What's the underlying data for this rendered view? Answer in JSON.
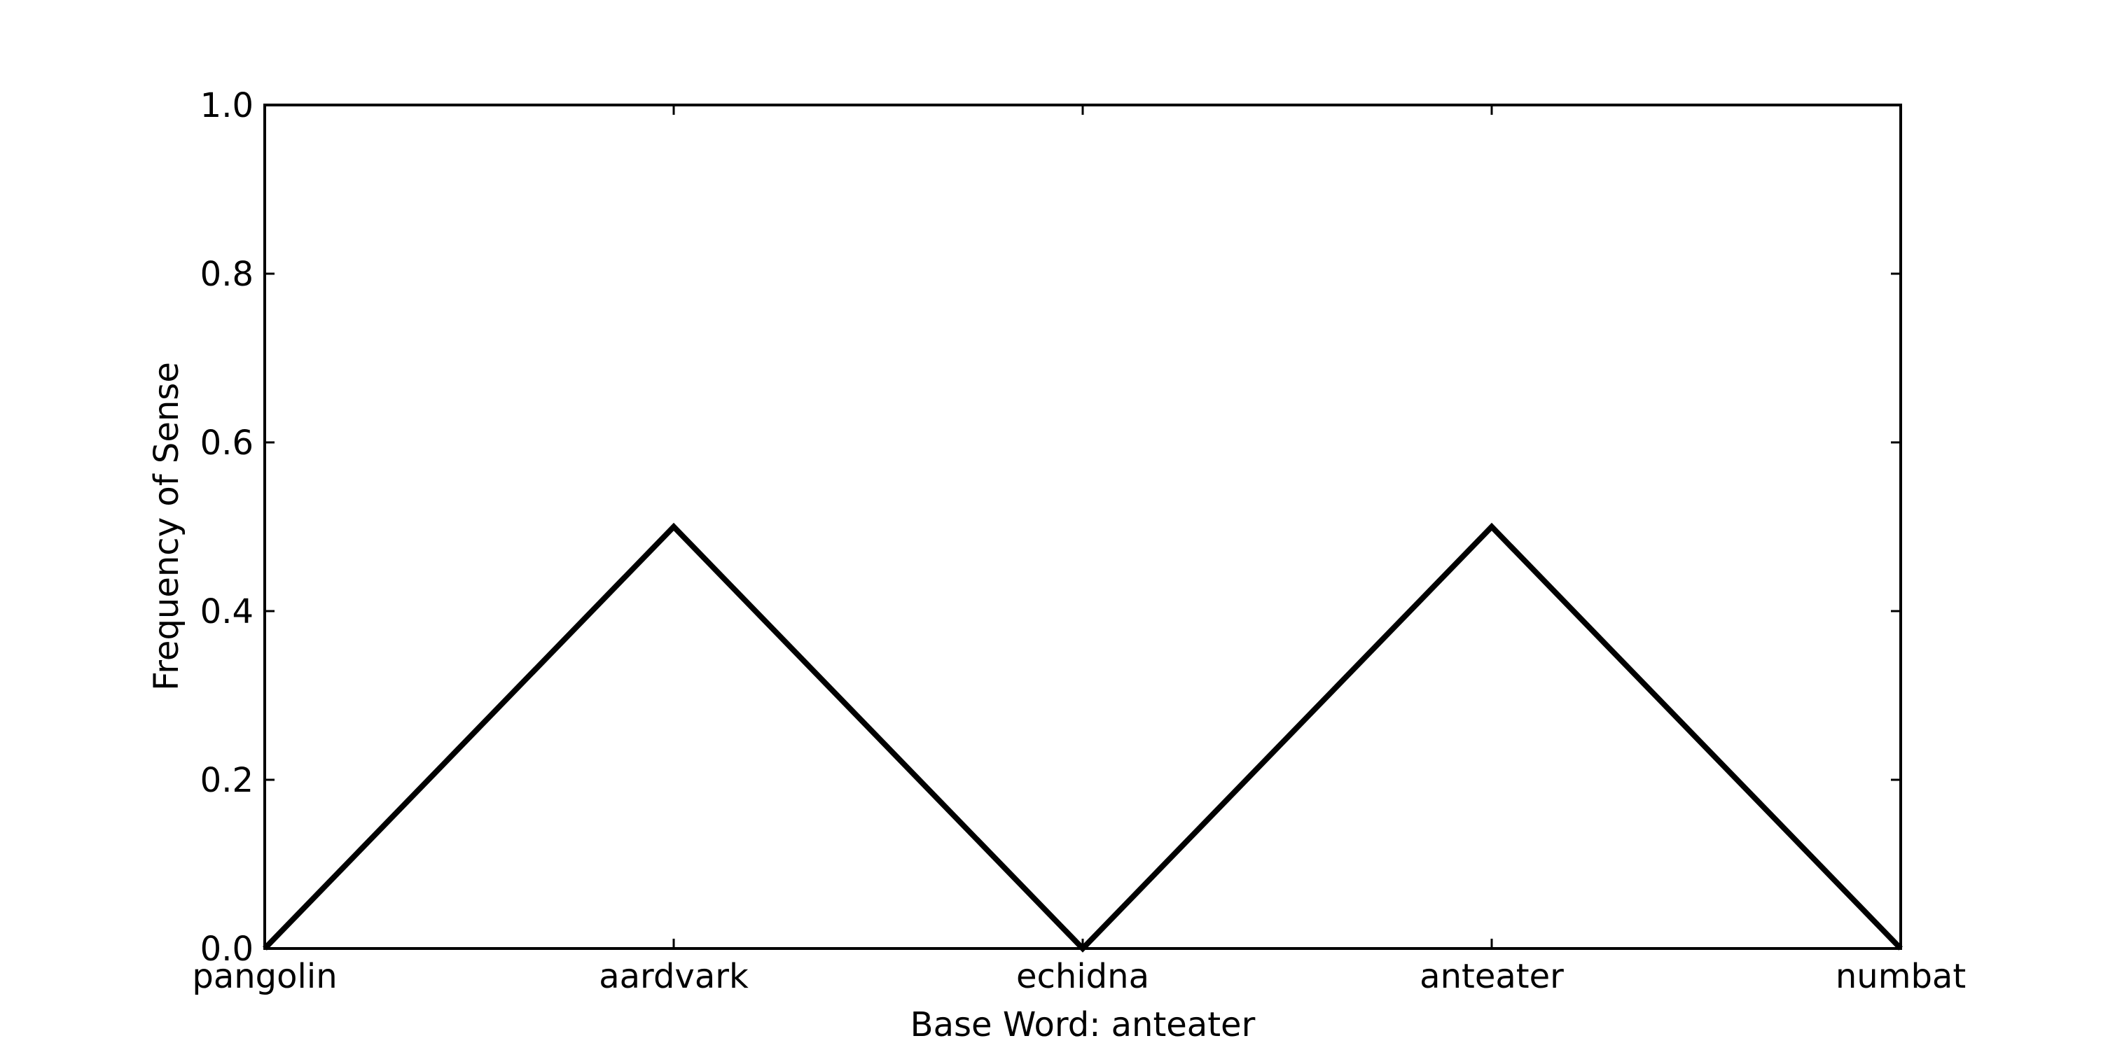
{
  "chart_data": {
    "type": "line",
    "title": "",
    "xlabel": "Base Word: anteater",
    "ylabel": "Frequency of Sense",
    "categories": [
      "pangolin",
      "aardvark",
      "echidna",
      "anteater",
      "numbat"
    ],
    "series": [
      {
        "values": [
          0.0,
          0.5,
          0.0,
          0.5,
          0.0
        ],
        "color": "#000000"
      }
    ],
    "ylim": [
      0.0,
      1.0
    ],
    "yticks": [
      "0.0",
      "0.2",
      "0.4",
      "0.6",
      "0.8",
      "1.0"
    ],
    "grid": false
  }
}
